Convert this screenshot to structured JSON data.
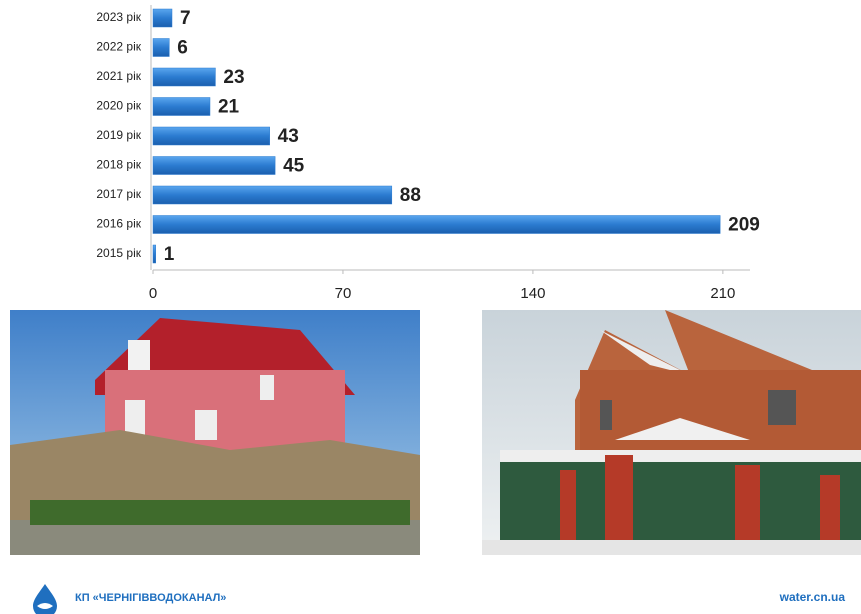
{
  "chart_data": {
    "type": "barh",
    "categories": [
      "2015 рік",
      "2016 рік",
      "2017 рік",
      "2018 рік",
      "2019 рік",
      "2020 рік",
      "2021 рік",
      "2022 рік",
      "2023 рік"
    ],
    "values": [
      1,
      209,
      88,
      45,
      43,
      21,
      23,
      6,
      7
    ],
    "color": "#2b7bd0",
    "xlim": [
      0,
      220
    ],
    "xticks": [
      0,
      70,
      140,
      210
    ],
    "grid": false
  },
  "footer": {
    "organization": "КП «ЧЕРНІГІВВОДОКАНАЛ»",
    "website": "water.cn.ua"
  }
}
